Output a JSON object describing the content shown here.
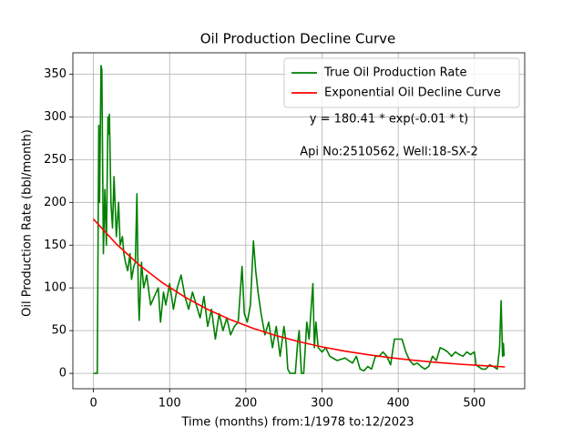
{
  "chart_data": {
    "type": "line",
    "title": "Oil Production Decline Curve",
    "x_label": "Time (months) from:1/1978 to:12/2023",
    "y_label": "Oil Production Rate (bbl/month)",
    "annotations": [
      "y = 180.41 * exp(-0.01 * t)",
      "Api No:2510562, Well:18-SX-2"
    ],
    "xlim": [
      -27,
      566
    ],
    "ylim": [
      -18,
      375
    ],
    "xticks": [
      0,
      100,
      200,
      300,
      400,
      500
    ],
    "yticks": [
      0,
      50,
      100,
      150,
      200,
      250,
      300,
      350
    ],
    "grid": true,
    "legend": "upper right",
    "series": [
      {
        "name": "True Oil Production Rate",
        "color": "#008000",
        "x": [
          0,
          5,
          7,
          8,
          10,
          11,
          13,
          15,
          17,
          19,
          20,
          21,
          23,
          25,
          27,
          30,
          33,
          35,
          38,
          40,
          42,
          45,
          48,
          50,
          53,
          55,
          57,
          59,
          60,
          63,
          66,
          70,
          75,
          80,
          85,
          88,
          92,
          95,
          100,
          105,
          110,
          115,
          120,
          125,
          130,
          135,
          140,
          145,
          150,
          155,
          160,
          165,
          170,
          175,
          180,
          185,
          190,
          195,
          198,
          202,
          206,
          210,
          213,
          216,
          220,
          225,
          230,
          235,
          240,
          245,
          250,
          253,
          255,
          258,
          262,
          265,
          268,
          270,
          273,
          276,
          280,
          283,
          286,
          288,
          290,
          292,
          295,
          300,
          305,
          310,
          320,
          330,
          340,
          345,
          350,
          355,
          360,
          365,
          370,
          375,
          380,
          385,
          390,
          395,
          405,
          410,
          415,
          420,
          425,
          430,
          435,
          440,
          445,
          450,
          455,
          460,
          465,
          470,
          475,
          480,
          485,
          490,
          495,
          500,
          502,
          505,
          510,
          515,
          520,
          525,
          530,
          533,
          535,
          537,
          538,
          539
        ],
        "values": [
          0,
          0,
          290,
          200,
          360,
          355,
          140,
          215,
          150,
          300,
          280,
          303,
          200,
          170,
          230,
          160,
          200,
          150,
          160,
          140,
          130,
          120,
          140,
          110,
          125,
          130,
          210,
          90,
          62,
          130,
          100,
          115,
          80,
          90,
          100,
          60,
          95,
          80,
          105,
          75,
          100,
          115,
          90,
          75,
          95,
          80,
          65,
          90,
          55,
          75,
          40,
          70,
          50,
          65,
          45,
          55,
          60,
          125,
          70,
          60,
          80,
          155,
          120,
          95,
          70,
          45,
          60,
          30,
          55,
          20,
          55,
          35,
          5,
          0,
          0,
          0,
          35,
          50,
          0,
          0,
          60,
          40,
          80,
          105,
          30,
          60,
          30,
          25,
          30,
          20,
          15,
          18,
          12,
          20,
          5,
          3,
          8,
          5,
          20,
          20,
          25,
          20,
          10,
          40,
          40,
          25,
          15,
          10,
          12,
          8,
          5,
          8,
          20,
          15,
          30,
          28,
          25,
          20,
          25,
          22,
          20,
          25,
          22,
          25,
          10,
          8,
          5,
          5,
          10,
          8,
          5,
          30,
          85,
          20,
          35,
          20
        ]
      },
      {
        "name": "Exponential Oil Decline Curve",
        "color": "#ff0000",
        "x": [
          0,
          30,
          60,
          90,
          120,
          150,
          180,
          210,
          240,
          270,
          300,
          330,
          360,
          390,
          420,
          450,
          480,
          510,
          540
        ],
        "values": [
          180.4,
          151.3,
          126.8,
          106.3,
          89.2,
          74.8,
          62.7,
          52.6,
          44.1,
          37.0,
          31.0,
          26.0,
          21.8,
          18.3,
          15.3,
          12.8,
          10.8,
          9.0,
          7.6
        ]
      }
    ]
  }
}
